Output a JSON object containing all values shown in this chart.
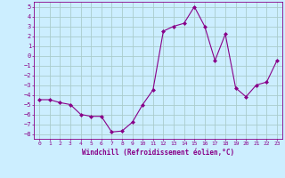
{
  "x": [
    0,
    1,
    2,
    3,
    4,
    5,
    6,
    7,
    8,
    9,
    10,
    11,
    12,
    13,
    14,
    15,
    16,
    17,
    18,
    19,
    20,
    21,
    22,
    23
  ],
  "y": [
    -4.5,
    -4.5,
    -4.8,
    -5.0,
    -6.0,
    -6.2,
    -6.2,
    -7.8,
    -7.7,
    -6.8,
    -5.0,
    -3.5,
    2.5,
    3.0,
    3.3,
    5.0,
    3.0,
    -0.5,
    2.2,
    -3.3,
    -4.2,
    -3.0,
    -2.7,
    -0.5
  ],
  "line_color": "#880088",
  "marker": "D",
  "marker_size": 2.0,
  "bg_color": "#cceeff",
  "grid_color": "#aacccc",
  "xlabel": "Windchill (Refroidissement éolien,°C)",
  "xlabel_color": "#880088",
  "tick_color": "#880088",
  "spine_color": "#880088",
  "xlim": [
    -0.5,
    23.5
  ],
  "ylim": [
    -8.5,
    5.5
  ],
  "yticks": [
    5,
    4,
    3,
    2,
    1,
    0,
    -1,
    -2,
    -3,
    -4,
    -5,
    -6,
    -7,
    -8
  ],
  "xticks": [
    0,
    1,
    2,
    3,
    4,
    5,
    6,
    7,
    8,
    9,
    10,
    11,
    12,
    13,
    14,
    15,
    16,
    17,
    18,
    19,
    20,
    21,
    22,
    23
  ]
}
